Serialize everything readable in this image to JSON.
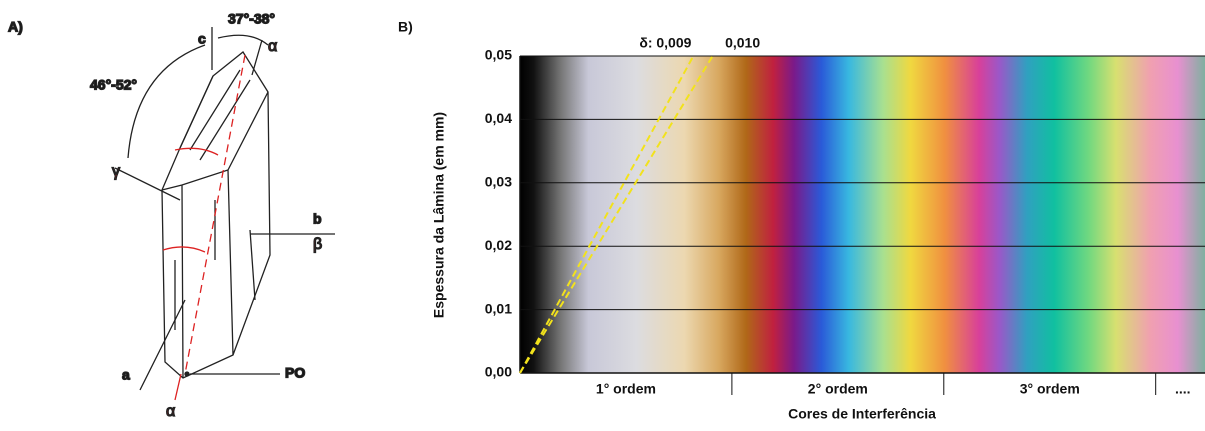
{
  "panel_a": {
    "label": "A)",
    "c": "c",
    "angle_c_alpha": "37°-38°",
    "alpha_top": "α",
    "angle_c_gamma": "46°-52°",
    "gamma": "γ",
    "b": "b",
    "beta": "β",
    "a": "a",
    "po": "PO",
    "alpha_bottom": "α"
  },
  "chart_data": {
    "type": "line",
    "label": "B)",
    "y_label": "Espessura da Lâmina (em mm)",
    "x_label": "Cores de Interferência",
    "categories": [
      "1° ordem",
      "2° ordem",
      "3° ordem",
      "...."
    ],
    "series": [
      {
        "name": "δ: 0,009",
        "value": 0.009,
        "color": "#f2e21c"
      },
      {
        "name": "0,010",
        "value": 0.01,
        "color": "#f2e21c"
      }
    ],
    "ylim": [
      0,
      0.05
    ],
    "yticks": [
      {
        "value": 0,
        "label": "0,00"
      },
      {
        "value": 0.01,
        "label": "0,01"
      },
      {
        "value": 0.02,
        "label": "0,02"
      },
      {
        "value": 0.03,
        "label": "0,03"
      },
      {
        "value": 0.04,
        "label": "0,04"
      },
      {
        "value": 0.05,
        "label": "0,05"
      }
    ],
    "xlim": [
      0,
      1778
    ],
    "xticks": [
      550,
      1100,
      1650
    ],
    "grid": true
  }
}
